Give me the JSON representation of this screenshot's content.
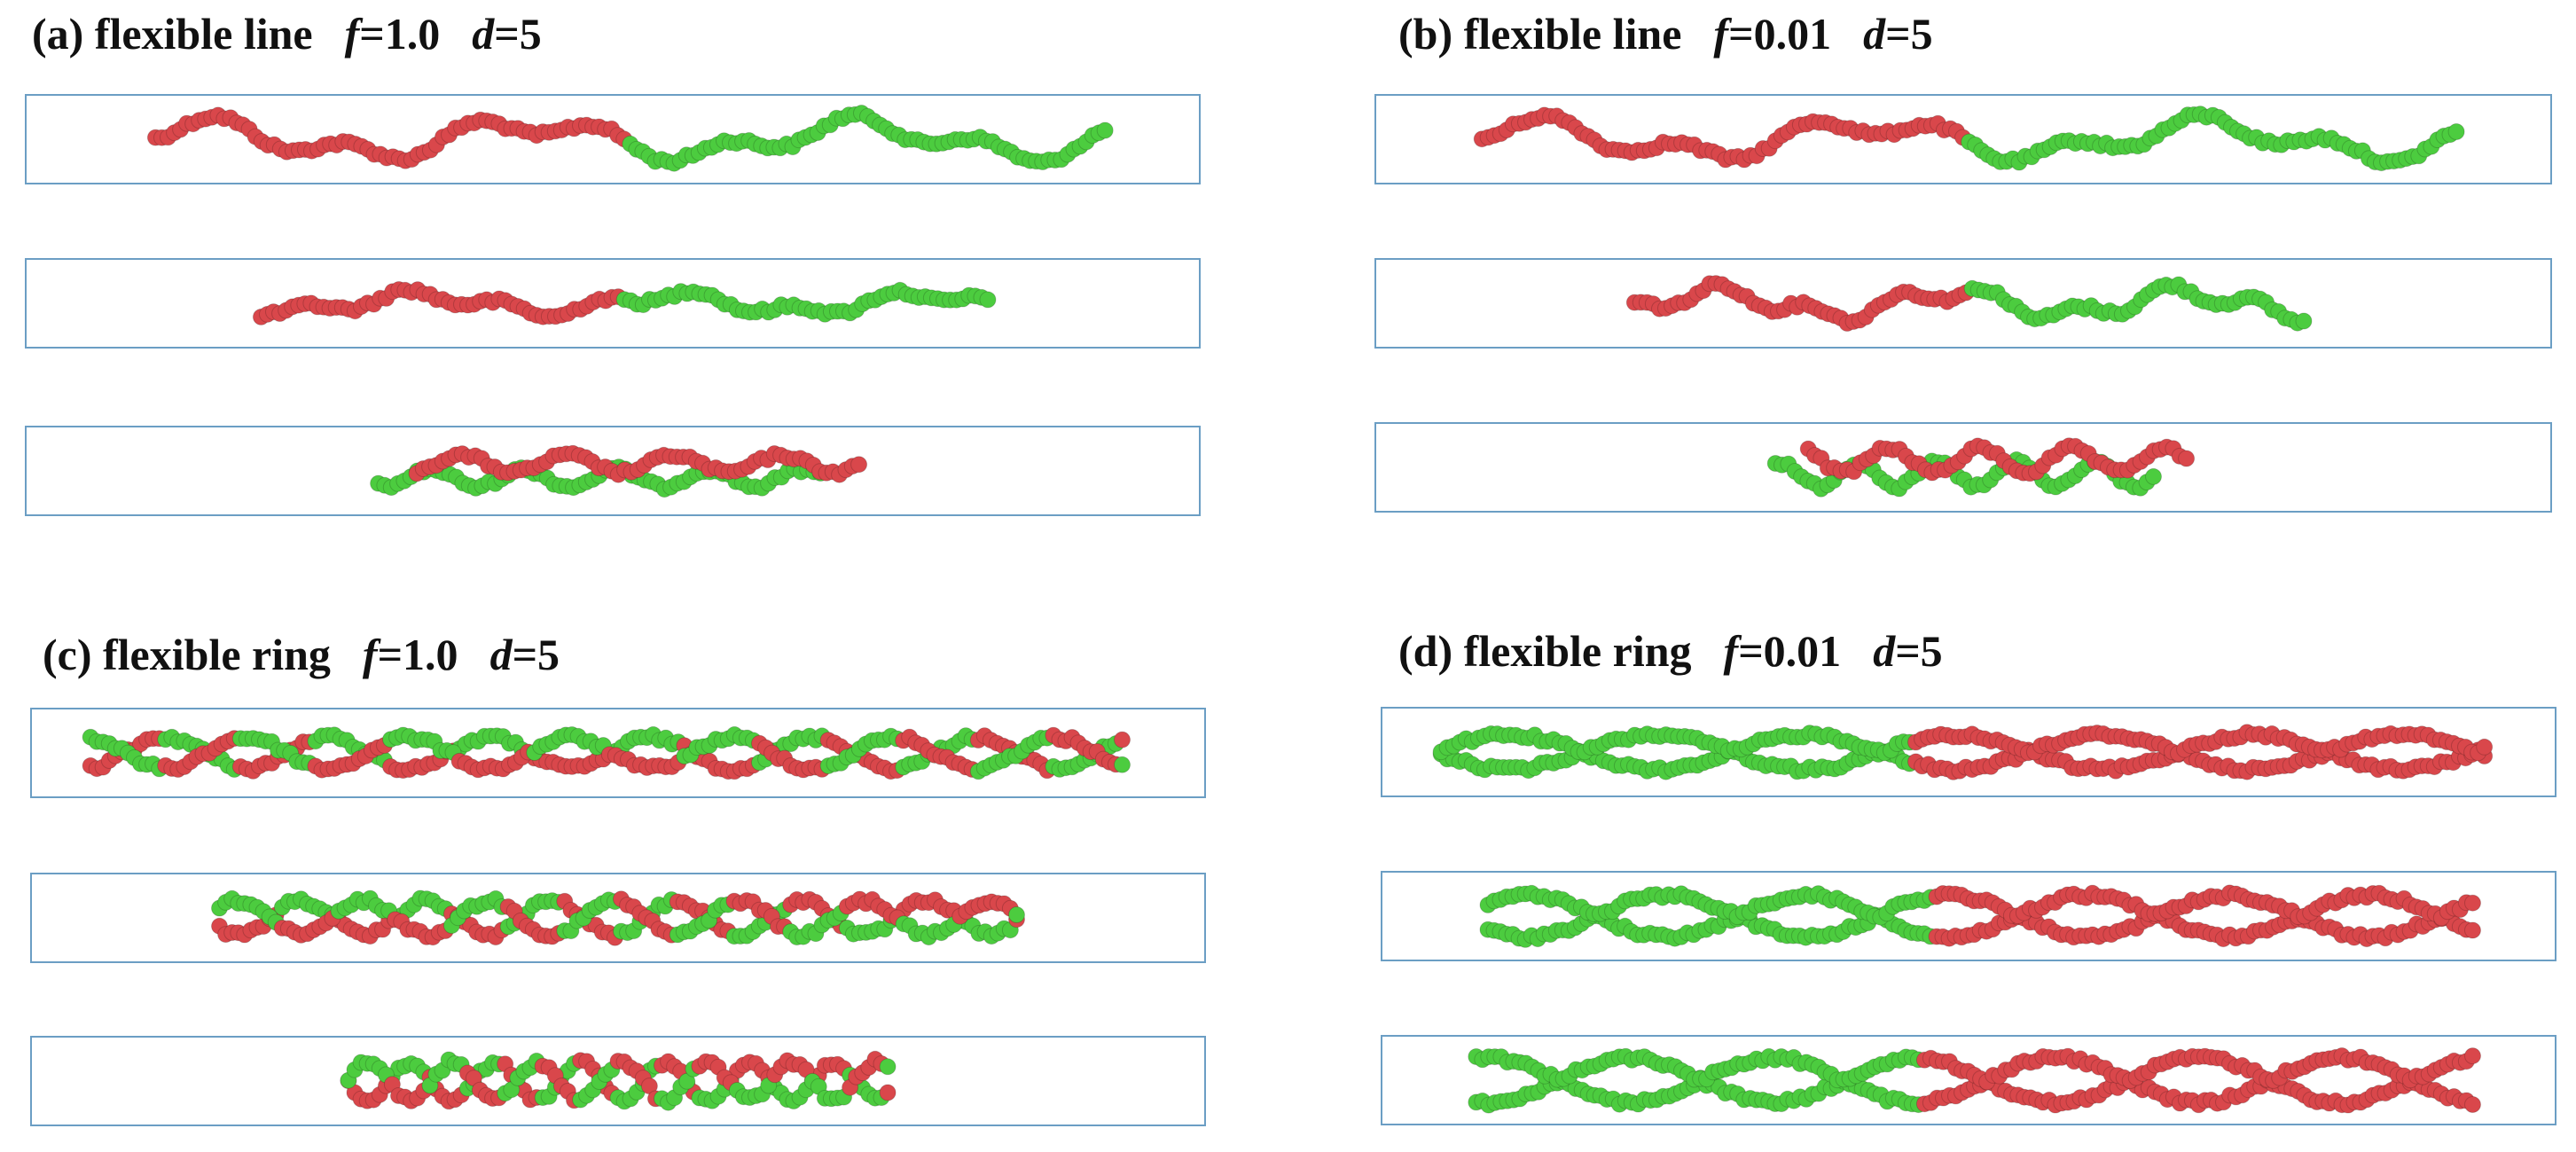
{
  "colors": {
    "red_bead": "#d9474b",
    "green_bead": "#4ccc3f",
    "frame": "#6b9ec4"
  },
  "panels": [
    {
      "id": "a",
      "label": "(a) flexible line",
      "f_sym": "f",
      "f_val": "=1.0",
      "d_sym": "d",
      "d_val": "=5",
      "rows": [
        {
          "kind": "split-line",
          "span": [
            0.11,
            0.92
          ],
          "amp": 0.28
        },
        {
          "kind": "split-line",
          "span": [
            0.2,
            0.82
          ],
          "amp": 0.16
        },
        {
          "kind": "overlap-line",
          "span": [
            0.3,
            0.71
          ],
          "amp": 0.1
        }
      ]
    },
    {
      "id": "b",
      "label": "(b) flexible line",
      "f_sym": "f",
      "f_val": "=0.01",
      "d_sym": "d",
      "d_val": "=5",
      "rows": [
        {
          "kind": "split-line",
          "span": [
            0.09,
            0.92
          ],
          "amp": 0.28
        },
        {
          "kind": "split-line",
          "span": [
            0.22,
            0.79
          ],
          "amp": 0.22
        },
        {
          "kind": "overlap-line",
          "span": [
            0.34,
            0.69
          ],
          "amp": 0.14
        }
      ]
    },
    {
      "id": "c",
      "label": "(c) flexible ring",
      "f_sym": "f",
      "f_val": "=1.0",
      "d_sym": "d",
      "d_val": "=5",
      "rows": [
        {
          "kind": "mixed-ring",
          "span": [
            0.05,
            0.93
          ],
          "amp": 0.18
        },
        {
          "kind": "mixed-ring",
          "span": [
            0.16,
            0.84
          ],
          "amp": 0.2
        },
        {
          "kind": "mixed-ring",
          "span": [
            0.27,
            0.73
          ],
          "amp": 0.22
        }
      ]
    },
    {
      "id": "d",
      "label": "(d) flexible ring",
      "f_sym": "f",
      "f_val": "=0.01",
      "d_sym": "d",
      "d_val": "=5",
      "rows": [
        {
          "kind": "split-ring",
          "span": [
            0.05,
            0.94
          ],
          "amp": 0.2
        },
        {
          "kind": "split-ring",
          "span": [
            0.09,
            0.93
          ],
          "amp": 0.24
        },
        {
          "kind": "split-ring",
          "span": [
            0.08,
            0.93
          ],
          "amp": 0.26
        }
      ]
    }
  ]
}
